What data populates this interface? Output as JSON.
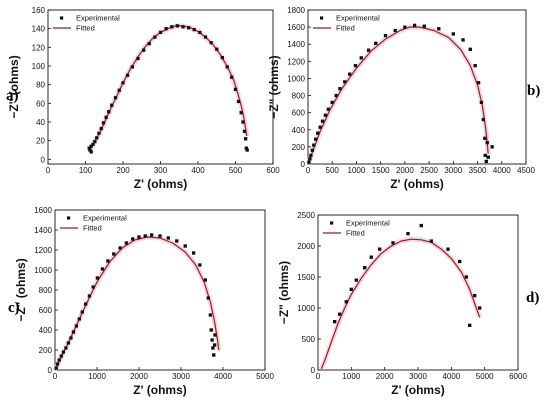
{
  "chart_data": [
    {
      "type": "scatter",
      "panel_label": "a)",
      "xlabel": "Z' (ohms)",
      "ylabel": "−Z\" (ohms)",
      "xlim": [
        0,
        600
      ],
      "ylim": [
        -5,
        160
      ],
      "xticks": [
        0,
        100,
        200,
        300,
        400,
        500,
        600
      ],
      "yticks": [
        0,
        20,
        40,
        60,
        80,
        100,
        120,
        140,
        160
      ],
      "legend": "top-left",
      "series": [
        {
          "name": "Experimental",
          "style": "markers",
          "color": "#111111",
          "points": [
            [
              115,
              8
            ],
            [
              112,
              10
            ],
            [
              110,
              12
            ],
            [
              115,
              14
            ],
            [
              120,
              16
            ],
            [
              125,
              19
            ],
            [
              130,
              23
            ],
            [
              136,
              28
            ],
            [
              142,
              33
            ],
            [
              148,
              39
            ],
            [
              155,
              45
            ],
            [
              162,
              51
            ],
            [
              170,
              58
            ],
            [
              180,
              66
            ],
            [
              190,
              74
            ],
            [
              200,
              82
            ],
            [
              212,
              90
            ],
            [
              225,
              99
            ],
            [
              240,
              108
            ],
            [
              255,
              117
            ],
            [
              270,
              124
            ],
            [
              285,
              131
            ],
            [
              300,
              136
            ],
            [
              315,
              140
            ],
            [
              330,
              142
            ],
            [
              345,
              143
            ],
            [
              360,
              142
            ],
            [
              375,
              141
            ],
            [
              390,
              139
            ],
            [
              405,
              136
            ],
            [
              420,
              131
            ],
            [
              435,
              125
            ],
            [
              450,
              118
            ],
            [
              465,
              109
            ],
            [
              478,
              99
            ],
            [
              490,
              88
            ],
            [
              500,
              75
            ],
            [
              508,
              62
            ],
            [
              515,
              50
            ],
            [
              520,
              40
            ],
            [
              524,
              30
            ],
            [
              527,
              22
            ],
            [
              529,
              12
            ],
            [
              531,
              10
            ]
          ]
        },
        {
          "name": "Fitted",
          "style": "line",
          "color": "#9b1c1c",
          "points": [
            [
              110,
              10
            ],
            [
              120,
              16
            ],
            [
              140,
              30
            ],
            [
              160,
              48
            ],
            [
              180,
              65
            ],
            [
              200,
              82
            ],
            [
              220,
              97
            ],
            [
              240,
              110
            ],
            [
              260,
              121
            ],
            [
              280,
              130
            ],
            [
              300,
              136
            ],
            [
              320,
              140
            ],
            [
              340,
              143
            ],
            [
              360,
              143
            ],
            [
              380,
              141
            ],
            [
              400,
              137
            ],
            [
              420,
              131
            ],
            [
              440,
              123
            ],
            [
              460,
              112
            ],
            [
              480,
              98
            ],
            [
              495,
              85
            ],
            [
              505,
              72
            ],
            [
              515,
              58
            ],
            [
              522,
              45
            ],
            [
              527,
              33
            ],
            [
              530,
              25
            ]
          ]
        }
      ]
    },
    {
      "type": "scatter",
      "panel_label": "b)",
      "xlabel": "Z' (ohms)",
      "ylabel": "−Z\" (ohms)",
      "xlim": [
        0,
        4500
      ],
      "ylim": [
        0,
        1800
      ],
      "xticks": [
        0,
        500,
        1000,
        1500,
        2000,
        2500,
        3000,
        3500,
        4000,
        4500
      ],
      "yticks": [
        0,
        200,
        400,
        600,
        800,
        1000,
        1200,
        1400,
        1600,
        1800
      ],
      "legend": "top-left",
      "series": [
        {
          "name": "Experimental",
          "style": "markers",
          "color": "#111111",
          "points": [
            [
              20,
              20
            ],
            [
              40,
              60
            ],
            [
              60,
              100
            ],
            [
              90,
              160
            ],
            [
              120,
              220
            ],
            [
              160,
              290
            ],
            [
              200,
              360
            ],
            [
              250,
              430
            ],
            [
              300,
              500
            ],
            [
              360,
              570
            ],
            [
              420,
              640
            ],
            [
              500,
              720
            ],
            [
              580,
              800
            ],
            [
              660,
              880
            ],
            [
              760,
              960
            ],
            [
              860,
              1050
            ],
            [
              980,
              1150
            ],
            [
              1100,
              1240
            ],
            [
              1250,
              1330
            ],
            [
              1400,
              1410
            ],
            [
              1600,
              1500
            ],
            [
              1800,
              1560
            ],
            [
              2000,
              1600
            ],
            [
              2200,
              1620
            ],
            [
              2400,
              1610
            ],
            [
              2700,
              1580
            ],
            [
              3000,
              1520
            ],
            [
              3200,
              1450
            ],
            [
              3350,
              1340
            ],
            [
              3450,
              1150
            ],
            [
              3520,
              950
            ],
            [
              3580,
              720
            ],
            [
              3620,
              520
            ],
            [
              3650,
              300
            ],
            [
              3660,
              100
            ],
            [
              3680,
              30
            ],
            [
              3720,
              80
            ],
            [
              3800,
              200
            ],
            [
              3700,
              250
            ]
          ]
        },
        {
          "name": "Fitted",
          "style": "line",
          "color": "#9b1c1c",
          "points": [
            [
              0,
              0
            ],
            [
              100,
              150
            ],
            [
              250,
              380
            ],
            [
              450,
              630
            ],
            [
              700,
              880
            ],
            [
              1000,
              1120
            ],
            [
              1300,
              1320
            ],
            [
              1600,
              1460
            ],
            [
              1900,
              1560
            ],
            [
              2100,
              1600
            ],
            [
              2300,
              1600
            ],
            [
              2600,
              1560
            ],
            [
              2900,
              1480
            ],
            [
              3150,
              1340
            ],
            [
              3350,
              1150
            ],
            [
              3500,
              920
            ],
            [
              3600,
              680
            ],
            [
              3660,
              450
            ],
            [
              3700,
              250
            ],
            [
              3720,
              120
            ]
          ]
        }
      ]
    },
    {
      "type": "scatter",
      "panel_label": "c)",
      "xlabel": "Z' (ohms)",
      "ylabel": "−Z\" (ohms)",
      "xlim": [
        0,
        5000
      ],
      "ylim": [
        0,
        1600
      ],
      "xticks": [
        0,
        1000,
        2000,
        3000,
        4000,
        5000
      ],
      "yticks": [
        0,
        200,
        400,
        600,
        800,
        1000,
        1200,
        1400,
        1600
      ],
      "legend": "top-left",
      "series": [
        {
          "name": "Experimental",
          "style": "markers",
          "color": "#111111",
          "points": [
            [
              30,
              20
            ],
            [
              60,
              60
            ],
            [
              100,
              100
            ],
            [
              150,
              140
            ],
            [
              200,
              180
            ],
            [
              260,
              220
            ],
            [
              320,
              270
            ],
            [
              380,
              320
            ],
            [
              440,
              380
            ],
            [
              510,
              440
            ],
            [
              580,
              510
            ],
            [
              650,
              580
            ],
            [
              730,
              660
            ],
            [
              820,
              740
            ],
            [
              910,
              830
            ],
            [
              1010,
              920
            ],
            [
              1130,
              1010
            ],
            [
              1260,
              1090
            ],
            [
              1400,
              1160
            ],
            [
              1550,
              1220
            ],
            [
              1700,
              1270
            ],
            [
              1850,
              1310
            ],
            [
              2000,
              1330
            ],
            [
              2150,
              1340
            ],
            [
              2300,
              1350
            ],
            [
              2500,
              1340
            ],
            [
              2700,
              1320
            ],
            [
              2900,
              1290
            ],
            [
              3100,
              1240
            ],
            [
              3300,
              1170
            ],
            [
              3450,
              1050
            ],
            [
              3580,
              900
            ],
            [
              3650,
              720
            ],
            [
              3700,
              550
            ],
            [
              3720,
              400
            ],
            [
              3740,
              300
            ],
            [
              3760,
              220
            ],
            [
              3780,
              150
            ],
            [
              3800,
              250
            ],
            [
              3810,
              350
            ]
          ]
        },
        {
          "name": "Fitted",
          "style": "line",
          "color": "#9b1c1c",
          "points": [
            [
              0,
              0
            ],
            [
              200,
              170
            ],
            [
              450,
              390
            ],
            [
              700,
              620
            ],
            [
              1000,
              880
            ],
            [
              1300,
              1080
            ],
            [
              1600,
              1220
            ],
            [
              1900,
              1300
            ],
            [
              2200,
              1330
            ],
            [
              2500,
              1320
            ],
            [
              2800,
              1270
            ],
            [
              3100,
              1180
            ],
            [
              3350,
              1050
            ],
            [
              3550,
              880
            ],
            [
              3700,
              680
            ],
            [
              3800,
              480
            ],
            [
              3870,
              300
            ],
            [
              3900,
              200
            ]
          ]
        }
      ]
    },
    {
      "type": "scatter",
      "panel_label": "d)",
      "xlabel": "Z' (ohms)",
      "ylabel": "−Z\" (ohms)",
      "xlim": [
        0,
        6000
      ],
      "ylim": [
        0,
        2500
      ],
      "xticks": [
        0,
        1000,
        2000,
        3000,
        4000,
        5000,
        6000
      ],
      "yticks": [
        0,
        500,
        1000,
        1500,
        2000,
        2500
      ],
      "legend": "top-left",
      "series": [
        {
          "name": "Experimental",
          "style": "markers",
          "color": "#111111",
          "points": [
            [
              500,
              780
            ],
            [
              650,
              900
            ],
            [
              850,
              1100
            ],
            [
              1000,
              1300
            ],
            [
              1150,
              1450
            ],
            [
              1400,
              1650
            ],
            [
              1600,
              1820
            ],
            [
              1850,
              1950
            ],
            [
              2250,
              2050
            ],
            [
              2700,
              2200
            ],
            [
              3100,
              2330
            ],
            [
              3400,
              2080
            ],
            [
              3900,
              1950
            ],
            [
              4250,
              1750
            ],
            [
              4450,
              1500
            ],
            [
              4700,
              1200
            ],
            [
              4850,
              1000
            ],
            [
              4550,
              720
            ]
          ]
        },
        {
          "name": "Fitted",
          "style": "line",
          "color": "#9b1c1c",
          "points": [
            [
              100,
              20
            ],
            [
              200,
              150
            ],
            [
              400,
              450
            ],
            [
              600,
              750
            ],
            [
              800,
              1000
            ],
            [
              1000,
              1220
            ],
            [
              1300,
              1480
            ],
            [
              1600,
              1700
            ],
            [
              1900,
              1880
            ],
            [
              2200,
              2000
            ],
            [
              2500,
              2080
            ],
            [
              2800,
              2110
            ],
            [
              3100,
              2100
            ],
            [
              3400,
              2060
            ],
            [
              3700,
              1950
            ],
            [
              4000,
              1800
            ],
            [
              4300,
              1580
            ],
            [
              4550,
              1300
            ],
            [
              4750,
              1000
            ],
            [
              4850,
              850
            ]
          ]
        }
      ]
    }
  ]
}
